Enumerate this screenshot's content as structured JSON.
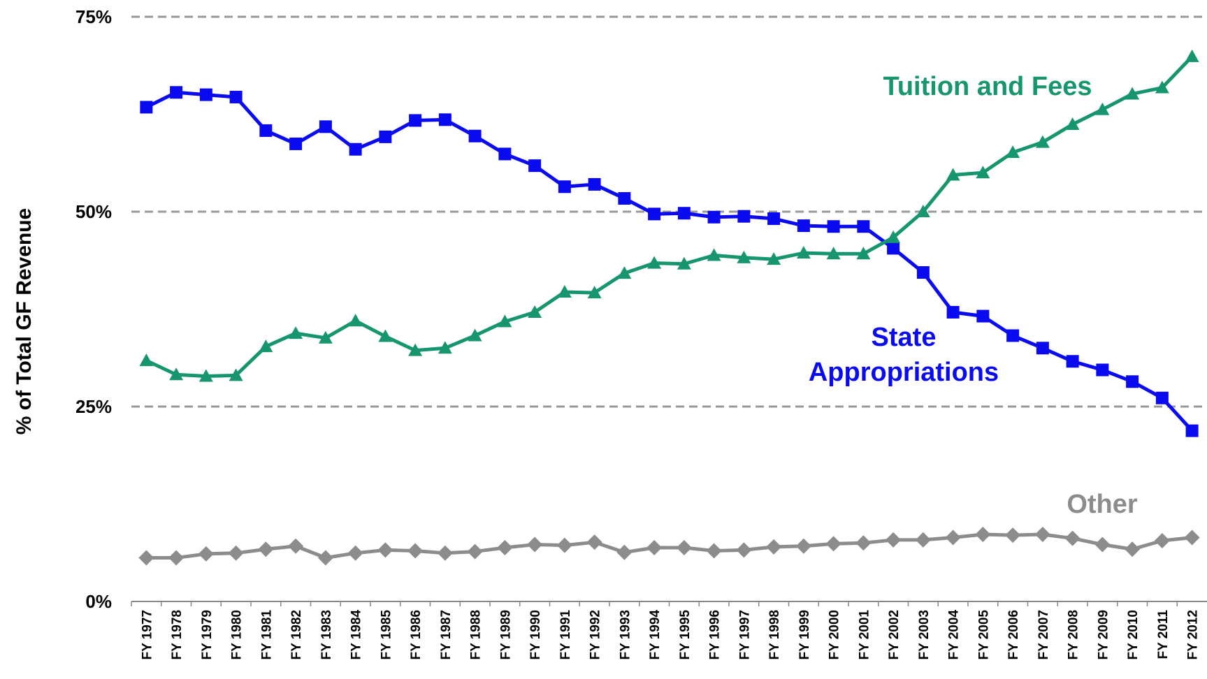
{
  "chart_data": {
    "type": "line",
    "y_label": "% of Total GF Revenue",
    "categories": [
      "FY 1977",
      "FY 1978",
      "FY 1979",
      "FY 1980",
      "FY 1981",
      "FY 1982",
      "FY 1983",
      "FY 1984",
      "FY 1985",
      "FY 1986",
      "FY 1987",
      "FY 1988",
      "FY 1989",
      "FY 1990",
      "FY 1991",
      "FY 1992",
      "FY 1993",
      "FY 1994",
      "FY 1995",
      "FY 1996",
      "FY 1997",
      "FY 1998",
      "FY 1999",
      "FY 2000",
      "FY 2001",
      "FY 2002",
      "FY 2003",
      "FY 2004",
      "FY 2005",
      "FY 2006",
      "FY 2007",
      "FY 2008",
      "FY 2009",
      "FY 2010",
      "FY 2011",
      "FY 2012"
    ],
    "series": [
      {
        "name": "State Appropriations",
        "color": "#0a0af0",
        "marker": "square",
        "values": [
          63.4,
          65.3,
          65.0,
          64.7,
          60.4,
          58.7,
          60.9,
          58.0,
          59.6,
          61.7,
          61.8,
          59.7,
          57.4,
          55.9,
          53.2,
          53.5,
          51.7,
          49.7,
          49.8,
          49.3,
          49.4,
          49.1,
          48.2,
          48.1,
          48.1,
          45.3,
          42.2,
          37.1,
          36.6,
          34.1,
          32.5,
          30.8,
          29.7,
          28.2,
          26.1,
          21.9
        ]
      },
      {
        "name": "Tuition and Fees",
        "color": "#17956f",
        "marker": "triangle",
        "values": [
          30.9,
          29.1,
          28.9,
          29.0,
          32.7,
          34.4,
          33.8,
          36.0,
          34.0,
          32.2,
          32.5,
          34.1,
          35.9,
          37.1,
          39.7,
          39.6,
          42.1,
          43.4,
          43.3,
          44.4,
          44.1,
          43.9,
          44.7,
          44.6,
          44.6,
          46.7,
          50.0,
          54.7,
          55.0,
          57.6,
          58.9,
          61.2,
          63.1,
          65.1,
          65.9,
          69.9
        ]
      },
      {
        "name": "Other",
        "color": "#8c8c8c",
        "marker": "diamond",
        "values": [
          5.6,
          5.6,
          6.1,
          6.2,
          6.7,
          7.1,
          5.6,
          6.2,
          6.6,
          6.5,
          6.2,
          6.4,
          6.9,
          7.3,
          7.2,
          7.6,
          6.3,
          6.9,
          6.9,
          6.5,
          6.6,
          7.0,
          7.1,
          7.4,
          7.5,
          7.9,
          7.9,
          8.2,
          8.6,
          8.5,
          8.6,
          8.1,
          7.3,
          6.7,
          7.8,
          8.2
        ]
      }
    ],
    "ylim": [
      0,
      75
    ],
    "yticks": [
      {
        "value": 0,
        "label": "0%"
      },
      {
        "value": 25,
        "label": "25%"
      },
      {
        "value": 50,
        "label": "50%"
      },
      {
        "value": 75,
        "label": "75%"
      }
    ],
    "grid": true
  }
}
